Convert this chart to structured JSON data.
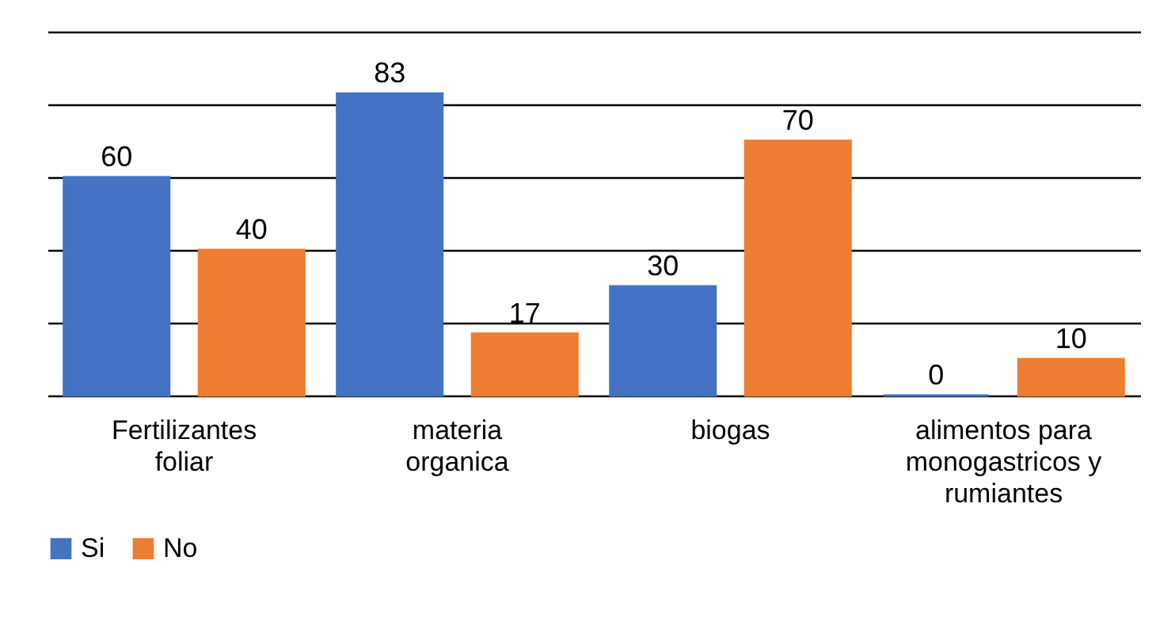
{
  "chart_data": {
    "type": "bar",
    "categories": [
      "Fertilizantes foliar",
      "materia organica",
      "biogas",
      "alimentos para monogastricos y rumiantes"
    ],
    "series": [
      {
        "name": "Si",
        "color": "#4472c4",
        "values": [
          60,
          83,
          30,
          0
        ]
      },
      {
        "name": "No",
        "color": "#ed7d31",
        "values": [
          40,
          17,
          70,
          10
        ]
      }
    ],
    "ylim": [
      0,
      100
    ],
    "yticks": [
      {
        "value": 0,
        "label": null
      },
      {
        "value": 20,
        "label": null
      },
      {
        "value": 40,
        "label": null
      },
      {
        "value": 60,
        "label": null
      },
      {
        "value": 80,
        "label": null
      },
      {
        "value": 100,
        "label": null
      }
    ],
    "tick_labels": "x",
    "grid": "y",
    "legend": "bottom",
    "data_labels": true
  }
}
